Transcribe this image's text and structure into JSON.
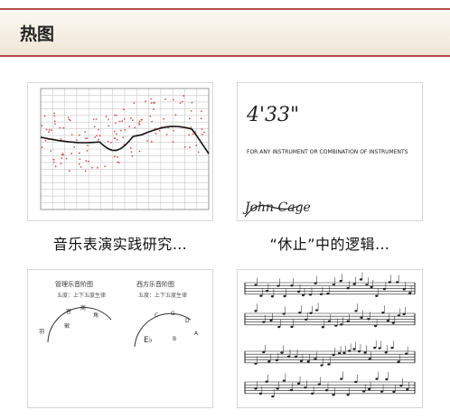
{
  "header": {
    "title": "热图"
  },
  "cards": [
    {
      "caption": "音乐表演实践研究…",
      "thumb_type": "scatter-chart"
    },
    {
      "caption": "“休止”中的逻辑…",
      "thumb_type": "handwritten-score",
      "handwriting": {
        "line1": "4'33\"",
        "line2": "FOR ANY INSTRUMENT OR COMBINATION OF INSTRUMENTS",
        "signature": "John Cage"
      }
    },
    {
      "caption": "",
      "thumb_type": "diagram",
      "labels": {
        "left_top": "管理乐音阶图",
        "right_top": "西方乐音阶图"
      }
    },
    {
      "caption": "",
      "thumb_type": "sheet-music"
    }
  ],
  "colors": {
    "accent": "#b44a46",
    "header_bg": "#f4ede1"
  }
}
